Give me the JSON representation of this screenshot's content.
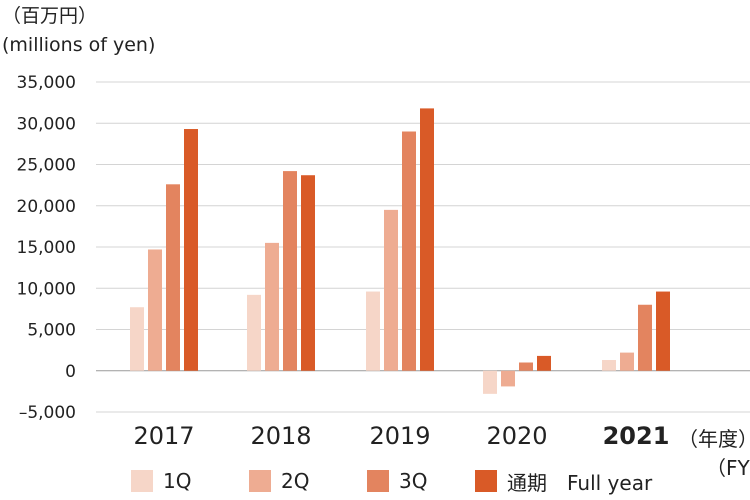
{
  "unit_label_ja": "（百万円）",
  "unit_label_en": "(millions of yen)",
  "fy_label_ja": "（年度）",
  "fy_label_en": "（FY）",
  "legend": [
    {
      "label": "1Q",
      "color": "#f6d6c8"
    },
    {
      "label": "2Q",
      "color": "#eeac92"
    },
    {
      "label": "3Q",
      "color": "#e3845f"
    },
    {
      "label": "通期　Full year",
      "color": "#d95a27"
    }
  ],
  "chart_data": {
    "type": "bar",
    "categories": [
      "2017",
      "2018",
      "2019",
      "2020",
      "2021"
    ],
    "highlight_category": "2021",
    "series": [
      {
        "name": "1Q",
        "color": "#f6d6c8",
        "values": [
          7700,
          9200,
          9600,
          -2800,
          1300
        ]
      },
      {
        "name": "2Q",
        "color": "#eeac92",
        "values": [
          14700,
          15500,
          19500,
          -1900,
          2200
        ]
      },
      {
        "name": "3Q",
        "color": "#e3845f",
        "values": [
          22600,
          24200,
          29000,
          1000,
          8000
        ]
      },
      {
        "name": "通期　Full year",
        "color": "#d95a27",
        "values": [
          29300,
          23700,
          31800,
          1800,
          9600
        ]
      }
    ],
    "yticks": [
      "35,000",
      "30,000",
      "25,000",
      "20,000",
      "15,000",
      "10,000",
      "5,000",
      "0",
      "–5,000"
    ],
    "ylim": [
      -5000,
      35000
    ],
    "grid": true
  }
}
